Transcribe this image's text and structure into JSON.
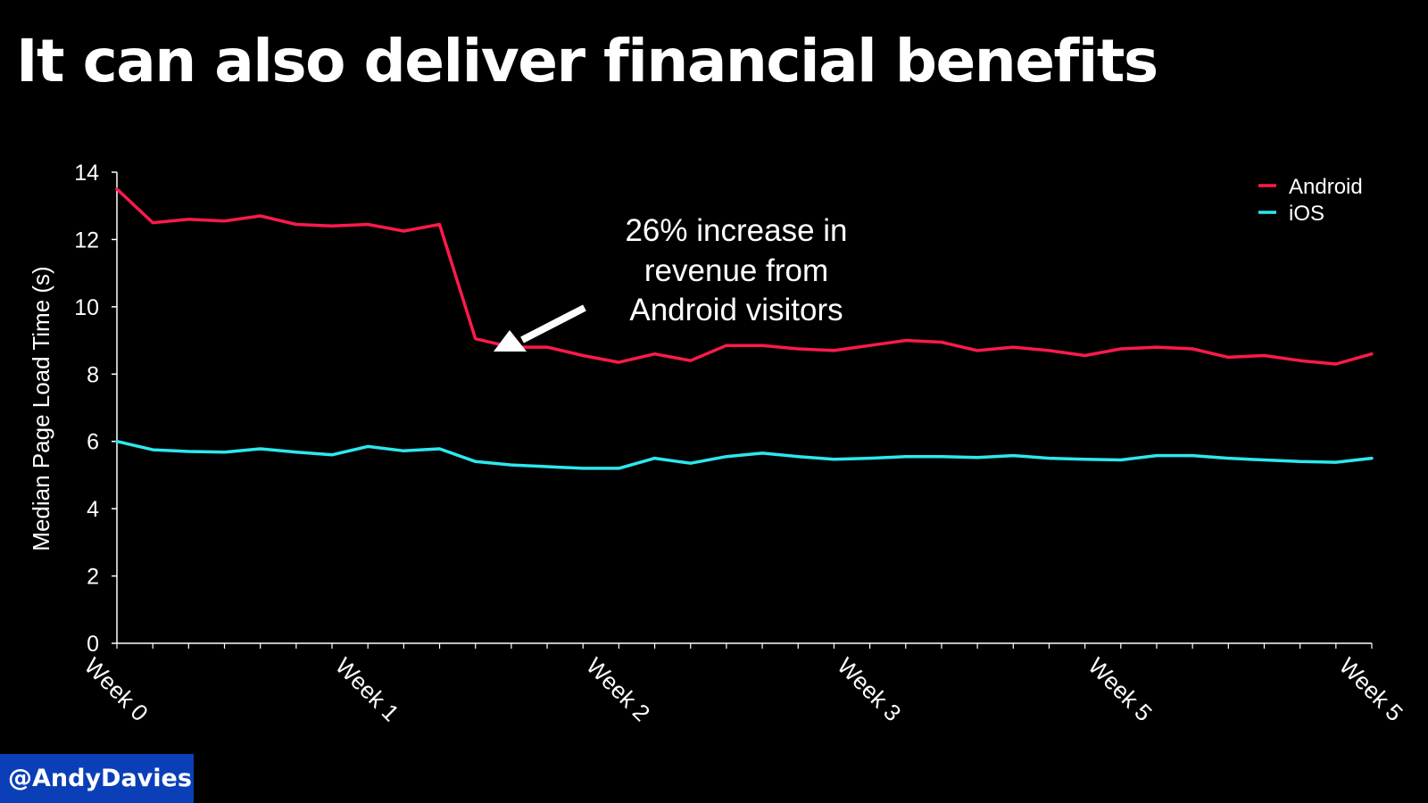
{
  "slide": {
    "title": "It can also deliver financial benefits",
    "handle": "@AndyDavies"
  },
  "chart_data": {
    "type": "line",
    "ylabel": "Median Page Load Time (s)",
    "xlabel": "",
    "ylim": [
      0,
      14
    ],
    "yticks": [
      0,
      2,
      4,
      6,
      8,
      10,
      12,
      14
    ],
    "xtick_labels": [
      "Week 0",
      "Week 1",
      "Week 2",
      "Week 3",
      "Week 5",
      "Week 5"
    ],
    "legend_position": "top-right",
    "grid": false,
    "annotation": {
      "lines": [
        "26% increase in",
        "revenue from",
        "Android visitors"
      ]
    },
    "x": [
      0,
      1,
      2,
      3,
      4,
      5,
      6,
      7,
      8,
      9,
      10,
      11,
      12,
      13,
      14,
      15,
      16,
      17,
      18,
      19,
      20,
      21,
      22,
      23,
      24,
      25,
      26,
      27,
      28,
      29,
      30,
      31,
      32,
      33,
      34,
      35
    ],
    "series": [
      {
        "name": "Android",
        "color": "#ff1a4b",
        "values": [
          13.5,
          12.5,
          12.6,
          12.55,
          12.7,
          12.45,
          12.4,
          12.45,
          12.25,
          12.45,
          9.05,
          8.8,
          8.8,
          8.55,
          8.35,
          8.6,
          8.4,
          8.85,
          8.85,
          8.75,
          8.7,
          8.85,
          9.0,
          8.95,
          8.7,
          8.8,
          8.7,
          8.55,
          8.75,
          8.8,
          8.75,
          8.5,
          8.55,
          8.4,
          8.3,
          8.6
        ]
      },
      {
        "name": "iOS",
        "color": "#2de8ee",
        "values": [
          6.0,
          5.75,
          5.7,
          5.68,
          5.78,
          5.68,
          5.6,
          5.85,
          5.72,
          5.78,
          5.4,
          5.3,
          5.25,
          5.2,
          5.2,
          5.5,
          5.35,
          5.55,
          5.65,
          5.55,
          5.47,
          5.5,
          5.55,
          5.55,
          5.52,
          5.58,
          5.5,
          5.47,
          5.45,
          5.58,
          5.58,
          5.5,
          5.45,
          5.4,
          5.38,
          5.5
        ]
      }
    ]
  }
}
